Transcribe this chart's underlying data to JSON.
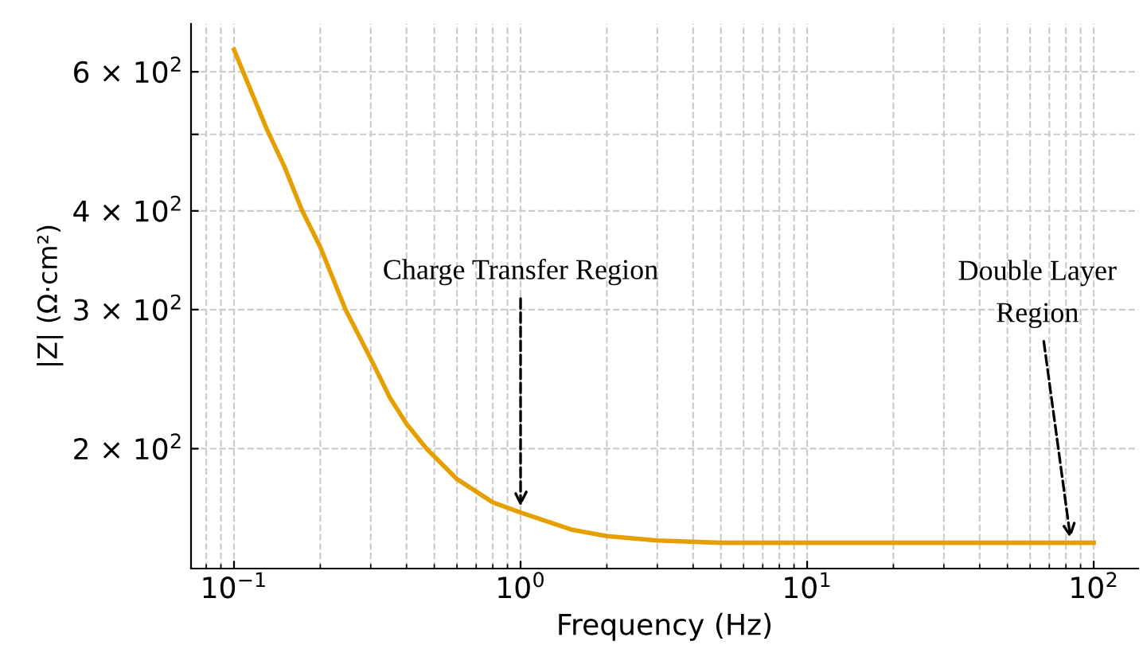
{
  "chart_data": {
    "type": "line",
    "xlabel": "Frequency (Hz)",
    "ylabel": "|Z| (Ω·cm²)",
    "log": "xy",
    "x": [
      0.1,
      0.13,
      0.15,
      0.173,
      0.2,
      0.245,
      0.3,
      0.35,
      0.4,
      0.47,
      0.6,
      0.8,
      1,
      1.5,
      2,
      3,
      5,
      10,
      30,
      100
    ],
    "series": [
      {
        "color": "#e69f00",
        "values": [
          640,
          508,
          455,
          400,
          360,
          300,
          260,
          232,
          215,
          200,
          183,
          171,
          166,
          158,
          155,
          153,
          152,
          152,
          152,
          152
        ]
      }
    ],
    "xlim": [
      0.0708,
      143
    ],
    "ylim": [
      141,
      690
    ],
    "xticks": [
      {
        "value": 0.1,
        "label": "10$^{−1}$"
      },
      {
        "value": 1,
        "label": "10$^{0}$"
      },
      {
        "value": 10,
        "label": "10$^{1}$"
      },
      {
        "value": 100,
        "label": "10$^{2}$"
      }
    ],
    "yticks": [
      {
        "value": 200,
        "label": "2 × 10$^{2}$"
      },
      {
        "value": 300,
        "label": "3 × 10$^{2}$"
      },
      {
        "value": 400,
        "label": "4 × 10$^{2}$"
      },
      {
        "value": 500,
        "label": null
      },
      {
        "value": 600,
        "label": "6 × 10$^{2}$"
      }
    ],
    "grid": true,
    "marker": "none",
    "line_style": "solid",
    "annotations": [
      {
        "text": "Charge Transfer Region",
        "x": 1,
        "y": 169
      },
      {
        "text": "Double Layer\nRegion",
        "x": 83,
        "y": 154
      }
    ]
  }
}
